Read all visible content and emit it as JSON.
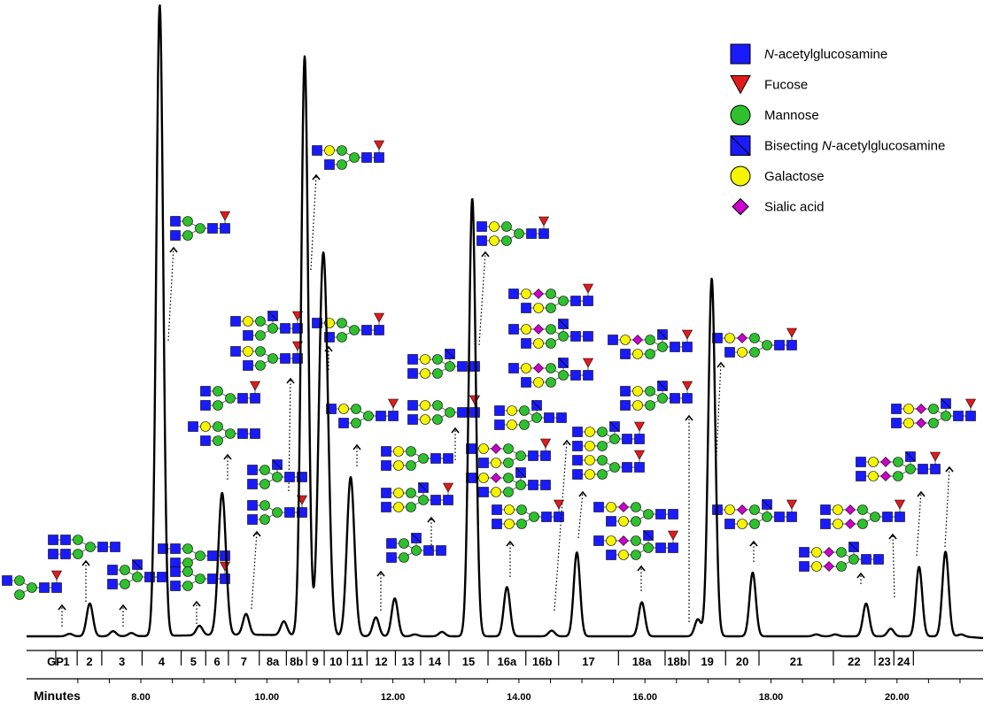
{
  "chart_data": {
    "type": "line",
    "xlabel": "Minutes",
    "ylabel": "",
    "xlim": [
      6.3,
      21.55
    ],
    "ylim": [
      0,
      100
    ],
    "x_ticks": [
      "8.00",
      "10.00",
      "12.00",
      "14.00",
      "16.00",
      "18.00",
      "20.00"
    ],
    "x_tick_values": [
      8,
      10,
      12,
      14,
      16,
      18,
      20
    ],
    "glycan_peaks": [
      "GP",
      "1",
      "2",
      "3",
      "4",
      "5",
      "6",
      "7",
      "8a",
      "8b",
      "9",
      "10",
      "11",
      "12",
      "13",
      "14",
      "15",
      "16a",
      "16b",
      "17",
      "18a",
      "18b",
      "19",
      "20",
      "21",
      "22",
      "23",
      "24"
    ],
    "gp_boundaries": [
      6.65,
      6.99,
      7.38,
      8.02,
      8.64,
      9.03,
      9.39,
      9.88,
      10.31,
      10.63,
      10.91,
      11.28,
      11.59,
      12.04,
      12.44,
      12.89,
      13.51,
      14.11,
      14.63,
      15.58,
      16.32,
      16.7,
      17.28,
      17.81,
      18.99,
      19.65,
      19.95,
      20.26
    ],
    "peaks": [
      {
        "gp": "1",
        "x": 6.87,
        "y": 0.4
      },
      {
        "gp": "2",
        "x": 7.19,
        "y": 5.2
      },
      {
        "gp": "3",
        "x": 7.56,
        "y": 0.8
      },
      {
        "gp": "3",
        "x": 7.85,
        "y": 0.5
      },
      {
        "gp": "4",
        "x": 8.3,
        "y": 100
      },
      {
        "gp": "5",
        "x": 8.93,
        "y": 1.5
      },
      {
        "gp": "6",
        "x": 9.29,
        "y": 22.5
      },
      {
        "gp": "7",
        "x": 9.67,
        "y": 3.3
      },
      {
        "gp": "8a",
        "x": 10.27,
        "y": 2.2
      },
      {
        "gp": "8b",
        "x": 10.6,
        "y": 91.8
      },
      {
        "gp": "9",
        "x": 10.87,
        "y": 41.4
      },
      {
        "gp": "9",
        "x": 10.94,
        "y": 30.2
      },
      {
        "gp": "10",
        "x": 11.33,
        "y": 25.2
      },
      {
        "gp": "11",
        "x": 11.73,
        "y": 3
      },
      {
        "gp": "12",
        "x": 12.03,
        "y": 6
      },
      {
        "gp": "12",
        "x": 12.35,
        "y": 0.3
      },
      {
        "gp": "13",
        "x": 12.78,
        "y": 0.7
      },
      {
        "gp": "14",
        "x": 13.26,
        "y": 69.4
      },
      {
        "gp": "15",
        "x": 13.81,
        "y": 7.8
      },
      {
        "gp": "16a",
        "x": 14.52,
        "y": 0.9
      },
      {
        "gp": "16b",
        "x": 14.92,
        "y": 13.3
      },
      {
        "gp": "17",
        "x": 15.95,
        "y": 5.4
      },
      {
        "gp": "18a",
        "x": 16.84,
        "y": 2.7
      },
      {
        "gp": "18b",
        "x": 17.06,
        "y": 56.7
      },
      {
        "gp": "19",
        "x": 17.71,
        "y": 10.1
      },
      {
        "gp": "20",
        "x": 18.72,
        "y": 0.3
      },
      {
        "gp": "20",
        "x": 19.02,
        "y": 0.3
      },
      {
        "gp": "21",
        "x": 19.51,
        "y": 5.2
      },
      {
        "gp": "22",
        "x": 19.9,
        "y": 1.2
      },
      {
        "gp": "23",
        "x": 20.35,
        "y": 11
      },
      {
        "gp": "24",
        "x": 20.77,
        "y": 13.4
      },
      {
        "gp": "24",
        "x": 21.02,
        "y": 0.3
      }
    ],
    "legend": [
      {
        "label_prefix": "",
        "label_italic": "N",
        "label_suffix": "-acetylglucosamine",
        "symbol": "square",
        "color": "#1a1aff"
      },
      {
        "label_prefix": "Fucose",
        "label_italic": "",
        "label_suffix": "",
        "symbol": "triangle-down",
        "color": "#e11b1b"
      },
      {
        "label_prefix": "Mannose",
        "label_italic": "",
        "label_suffix": "",
        "symbol": "circle",
        "color": "#2ec02e"
      },
      {
        "label_prefix": "Bisecting ",
        "label_italic": "N",
        "label_suffix": "-acetylglucosamine",
        "symbol": "square-bisect",
        "color": "#1a1aff"
      },
      {
        "label_prefix": "Galactose",
        "label_italic": "",
        "label_suffix": "",
        "symbol": "circle",
        "color": "#f5f500"
      },
      {
        "label_prefix": "Sialic acid",
        "label_italic": "",
        "label_suffix": "",
        "symbol": "diamond",
        "color": "#cc00cc"
      }
    ],
    "legend_placement": "top-right",
    "grid": false
  },
  "colors": {
    "trace": "#000000",
    "glcnac": "#1a1aff",
    "fucose": "#e11b1b",
    "mannose": "#2ec02e",
    "galactose": "#f5f500",
    "sialic": "#cc00cc"
  }
}
